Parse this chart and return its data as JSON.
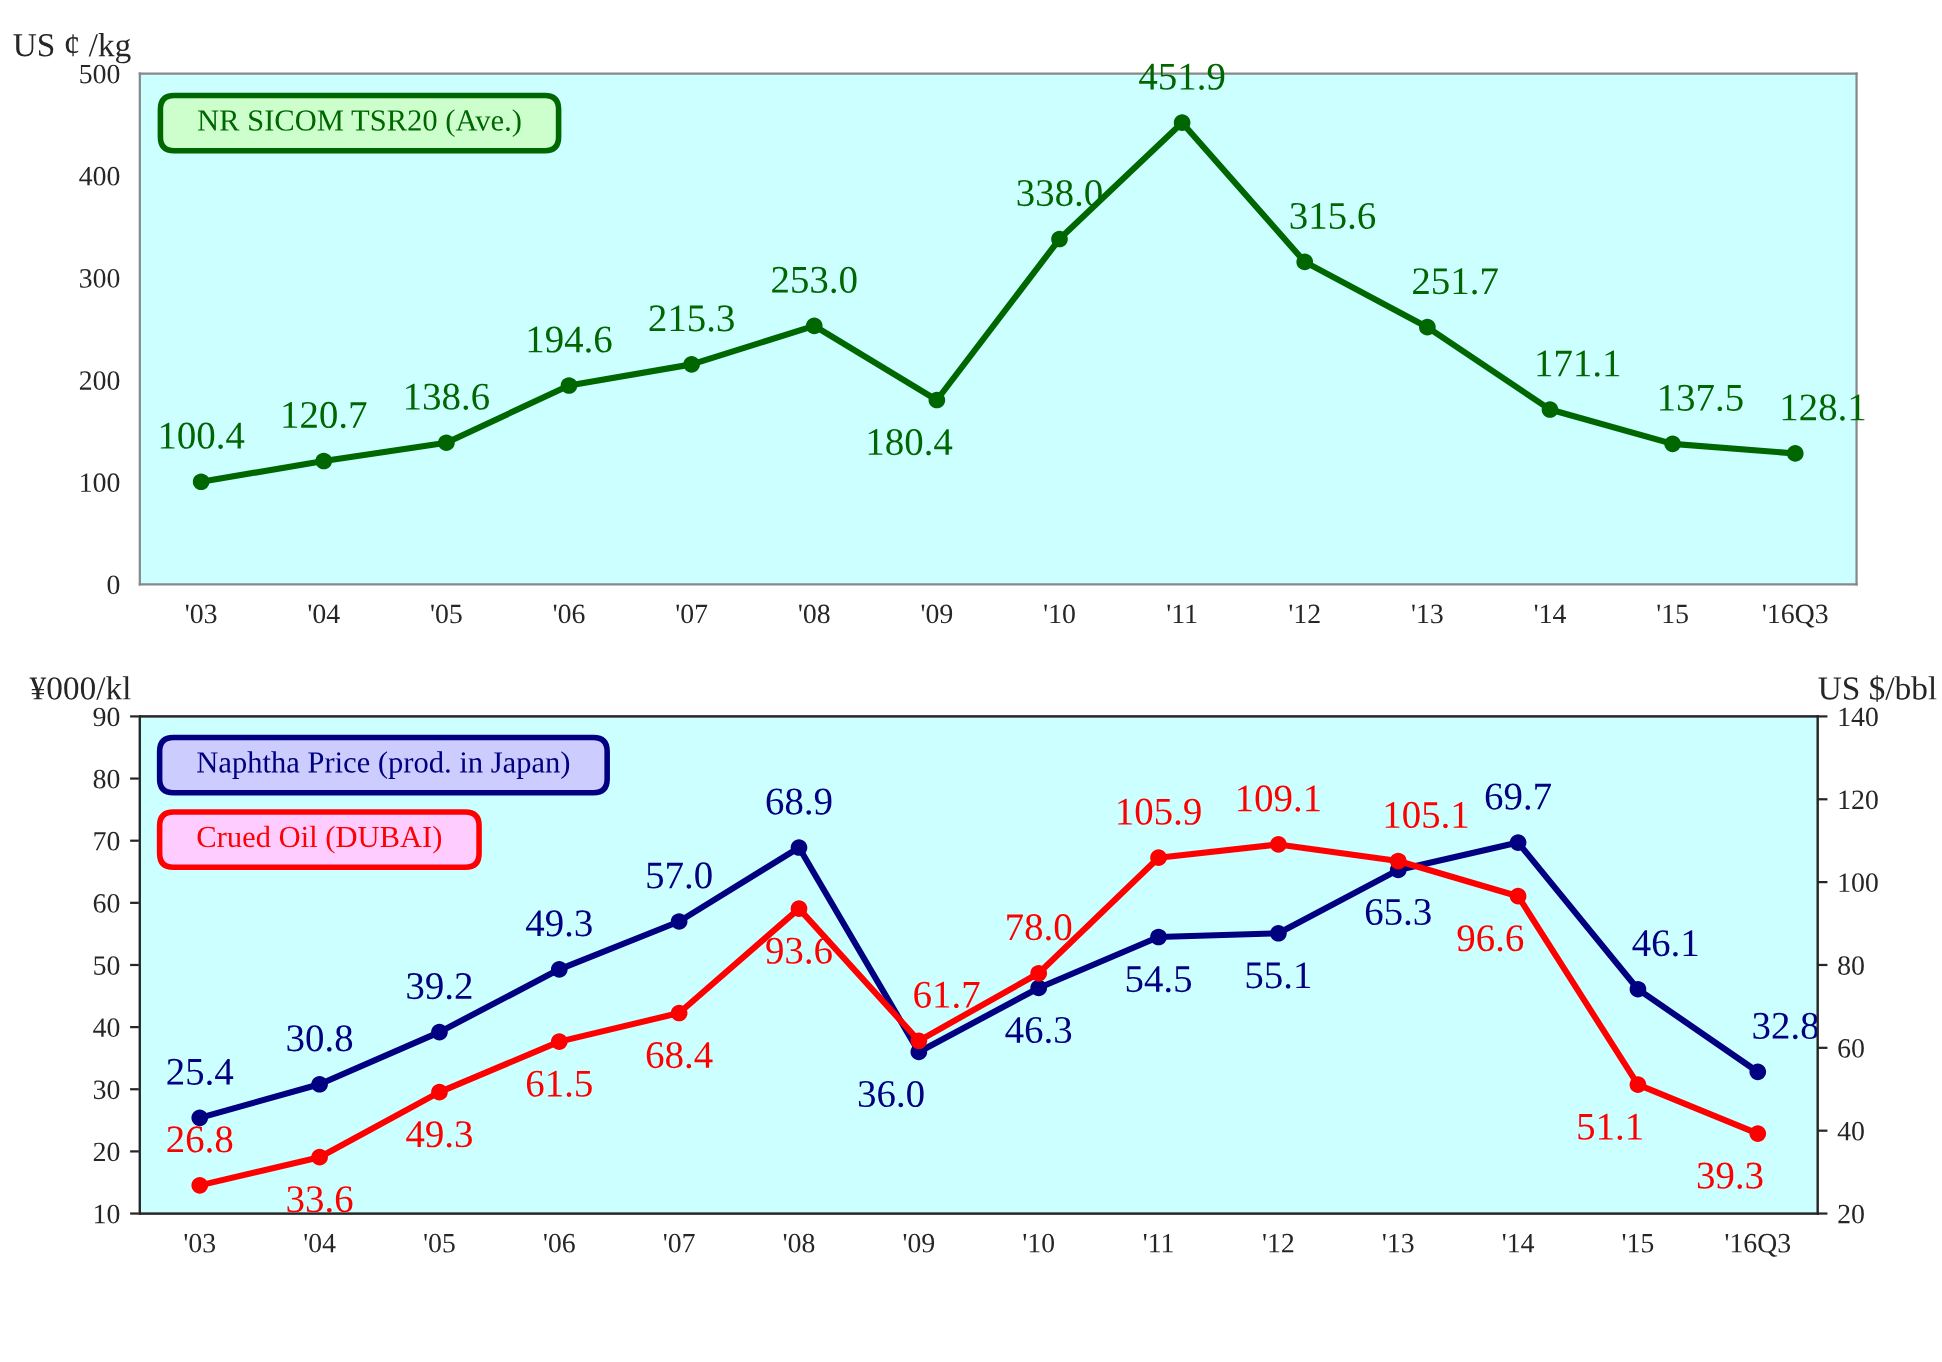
{
  "chart_data": [
    {
      "type": "line",
      "ylabel": "US ¢ /kg",
      "categories": [
        "'03",
        "'04",
        "'05",
        "'06",
        "'07",
        "'08",
        "'09",
        "'10",
        "'11",
        "'12",
        "'13",
        "'14",
        "'15",
        "'16Q3"
      ],
      "series": [
        {
          "name": "NR SICOM TSR20 (Ave.)",
          "color": "#006600",
          "values": [
            100.4,
            120.7,
            138.6,
            194.6,
            215.3,
            253.0,
            180.4,
            338.0,
            451.9,
            315.6,
            251.7,
            171.1,
            137.5,
            128.1
          ],
          "value_labels": [
            "100.4",
            "120.7",
            "138.6",
            "194.6",
            "215.3",
            "253.0",
            "180.4",
            "338.0",
            "451.9",
            "315.6",
            "251.7",
            "171.1",
            "137.5",
            "128.1"
          ]
        }
      ],
      "ylim": [
        0,
        500
      ],
      "yticks": [
        0,
        100,
        200,
        300,
        400,
        500
      ],
      "legend": "top left",
      "marker": "circle"
    },
    {
      "type": "line",
      "ylabel": "¥000/kl",
      "y2label": "US $/bbl",
      "categories": [
        "'03",
        "'04",
        "'05",
        "'06",
        "'07",
        "'08",
        "'09",
        "'10",
        "'11",
        "'12",
        "'13",
        "'14",
        "'15",
        "'16Q3"
      ],
      "series": [
        {
          "name": "Naphtha Price (prod. in Japan)",
          "color": "#000080",
          "values": [
            25.4,
            30.8,
            39.2,
            49.3,
            57.0,
            68.9,
            36.0,
            46.3,
            54.5,
            55.1,
            65.3,
            69.7,
            46.1,
            32.8
          ],
          "value_labels": [
            "25.4",
            "30.8",
            "39.2",
            "49.3",
            "57.0",
            "68.9",
            "36.0",
            "46.3",
            "54.5",
            "55.1",
            "65.3",
            "69.7",
            "46.1",
            "32.8"
          ]
        },
        {
          "name": "Crued Oil (DUBAI)",
          "color": "#ff0000",
          "axis": "y2",
          "values": [
            26.8,
            33.6,
            49.3,
            61.5,
            68.4,
            93.6,
            61.7,
            78.0,
            105.9,
            109.1,
            105.1,
            96.6,
            51.1,
            39.3
          ],
          "value_labels": [
            "26.8",
            "33.6",
            "49.3",
            "61.5",
            "68.4",
            "93.6",
            "61.7",
            "78.0",
            "105.9",
            "109.1",
            "105.1",
            "96.6",
            "51.1",
            "39.3"
          ]
        }
      ],
      "ylim": [
        10,
        90
      ],
      "yticks": [
        10,
        20,
        30,
        40,
        50,
        60,
        70,
        80,
        90
      ],
      "y2lim": [
        20,
        140
      ],
      "y2ticks": [
        20,
        40,
        60,
        80,
        100,
        120,
        140
      ],
      "legend": "top left",
      "marker": "circle"
    }
  ]
}
